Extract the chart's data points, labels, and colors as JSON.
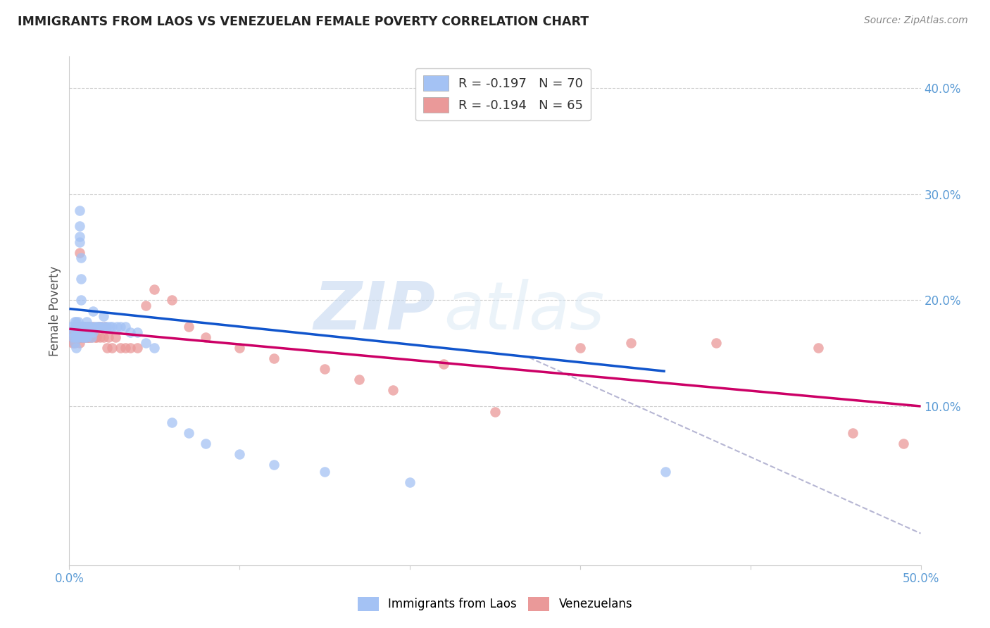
{
  "title": "IMMIGRANTS FROM LAOS VS VENEZUELAN FEMALE POVERTY CORRELATION CHART",
  "source": "Source: ZipAtlas.com",
  "ylabel": "Female Poverty",
  "xlim": [
    0.0,
    0.5
  ],
  "ylim": [
    -0.05,
    0.43
  ],
  "legend_text_blue": "R = -0.197   N = 70",
  "legend_text_pink": "R = -0.194   N = 65",
  "blue_color": "#a4c2f4",
  "pink_color": "#ea9999",
  "trendline_blue_color": "#1155cc",
  "trendline_pink_color": "#cc0066",
  "trendline_dashed_color": "#aaaacc",
  "watermark_zip": "ZIP",
  "watermark_atlas": "atlas",
  "blue_scatter_x": [
    0.001,
    0.002,
    0.002,
    0.003,
    0.003,
    0.003,
    0.003,
    0.004,
    0.004,
    0.004,
    0.004,
    0.004,
    0.005,
    0.005,
    0.005,
    0.005,
    0.005,
    0.006,
    0.006,
    0.006,
    0.006,
    0.007,
    0.007,
    0.007,
    0.007,
    0.007,
    0.008,
    0.008,
    0.008,
    0.008,
    0.009,
    0.009,
    0.009,
    0.009,
    0.01,
    0.01,
    0.01,
    0.011,
    0.011,
    0.012,
    0.012,
    0.013,
    0.013,
    0.014,
    0.014,
    0.015,
    0.016,
    0.017,
    0.018,
    0.019,
    0.02,
    0.021,
    0.022,
    0.024,
    0.025,
    0.028,
    0.03,
    0.033,
    0.036,
    0.04,
    0.045,
    0.05,
    0.06,
    0.07,
    0.08,
    0.1,
    0.12,
    0.15,
    0.2,
    0.35
  ],
  "blue_scatter_y": [
    0.175,
    0.165,
    0.17,
    0.16,
    0.175,
    0.18,
    0.165,
    0.155,
    0.17,
    0.175,
    0.18,
    0.165,
    0.175,
    0.165,
    0.18,
    0.175,
    0.17,
    0.255,
    0.27,
    0.285,
    0.26,
    0.175,
    0.165,
    0.22,
    0.24,
    0.2,
    0.175,
    0.175,
    0.165,
    0.175,
    0.175,
    0.17,
    0.165,
    0.175,
    0.165,
    0.175,
    0.18,
    0.175,
    0.17,
    0.17,
    0.175,
    0.175,
    0.165,
    0.19,
    0.17,
    0.175,
    0.175,
    0.175,
    0.175,
    0.175,
    0.185,
    0.175,
    0.175,
    0.175,
    0.175,
    0.175,
    0.175,
    0.175,
    0.17,
    0.17,
    0.16,
    0.155,
    0.085,
    0.075,
    0.065,
    0.055,
    0.045,
    0.038,
    0.028,
    0.038
  ],
  "pink_scatter_x": [
    0.001,
    0.002,
    0.002,
    0.003,
    0.003,
    0.003,
    0.004,
    0.004,
    0.004,
    0.005,
    0.005,
    0.005,
    0.006,
    0.006,
    0.006,
    0.006,
    0.007,
    0.007,
    0.007,
    0.008,
    0.008,
    0.008,
    0.009,
    0.009,
    0.01,
    0.01,
    0.011,
    0.011,
    0.012,
    0.012,
    0.013,
    0.014,
    0.015,
    0.016,
    0.017,
    0.018,
    0.019,
    0.02,
    0.021,
    0.022,
    0.023,
    0.025,
    0.027,
    0.03,
    0.033,
    0.036,
    0.04,
    0.045,
    0.05,
    0.06,
    0.07,
    0.08,
    0.1,
    0.12,
    0.15,
    0.17,
    0.19,
    0.22,
    0.25,
    0.3,
    0.33,
    0.38,
    0.44,
    0.46,
    0.49
  ],
  "pink_scatter_y": [
    0.165,
    0.16,
    0.17,
    0.165,
    0.16,
    0.17,
    0.165,
    0.175,
    0.165,
    0.165,
    0.17,
    0.175,
    0.165,
    0.17,
    0.16,
    0.245,
    0.165,
    0.175,
    0.165,
    0.165,
    0.175,
    0.165,
    0.165,
    0.175,
    0.165,
    0.175,
    0.165,
    0.175,
    0.165,
    0.175,
    0.165,
    0.175,
    0.165,
    0.165,
    0.175,
    0.165,
    0.175,
    0.165,
    0.175,
    0.155,
    0.165,
    0.155,
    0.165,
    0.155,
    0.155,
    0.155,
    0.155,
    0.195,
    0.21,
    0.2,
    0.175,
    0.165,
    0.155,
    0.145,
    0.135,
    0.125,
    0.115,
    0.14,
    0.095,
    0.155,
    0.16,
    0.16,
    0.155,
    0.075,
    0.065
  ],
  "grid_color": "#cccccc",
  "background_color": "#ffffff",
  "blue_trend_x0": 0.0,
  "blue_trend_y0": 0.192,
  "blue_trend_x1": 0.35,
  "blue_trend_y1": 0.133,
  "pink_trend_x0": 0.0,
  "pink_trend_y0": 0.173,
  "pink_trend_x1": 0.5,
  "pink_trend_y1": 0.1,
  "dash_trend_x0": 0.27,
  "dash_trend_y0": 0.146,
  "dash_trend_x1": 0.5,
  "dash_trend_y1": -0.02
}
